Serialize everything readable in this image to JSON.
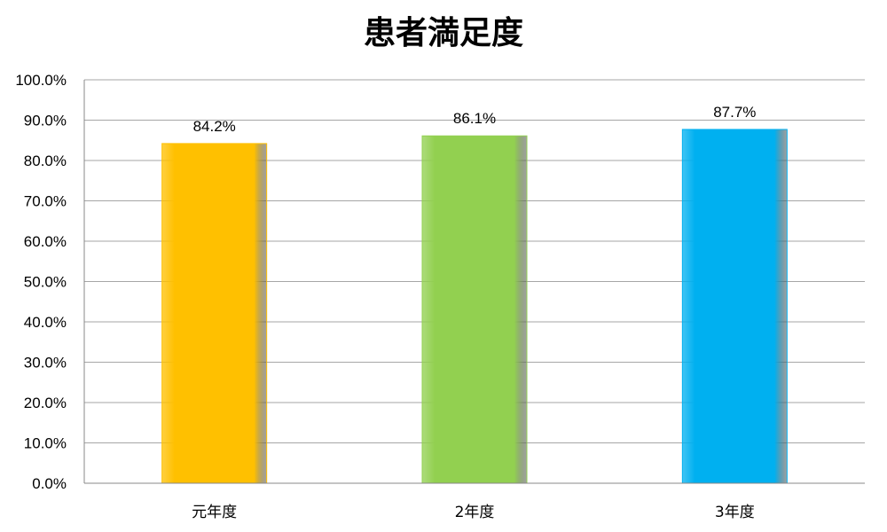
{
  "chart_data": {
    "type": "bar",
    "title": "患者満足度",
    "categories": [
      "元年度",
      "2年度",
      "3年度"
    ],
    "values": [
      84.2,
      86.1,
      87.7
    ],
    "data_labels": [
      "84.2%",
      "86.1%",
      "87.7%"
    ],
    "bar_colors": [
      "#FFC000",
      "#92D050",
      "#00B0F0"
    ],
    "ylim": [
      0,
      100
    ],
    "yticks": [
      0,
      10,
      20,
      30,
      40,
      50,
      60,
      70,
      80,
      90,
      100
    ],
    "ytick_labels": [
      "0.0%",
      "10.0%",
      "20.0%",
      "30.0%",
      "40.0%",
      "50.0%",
      "60.0%",
      "70.0%",
      "80.0%",
      "90.0%",
      "100.0%"
    ],
    "grid": true,
    "legend": "none"
  }
}
